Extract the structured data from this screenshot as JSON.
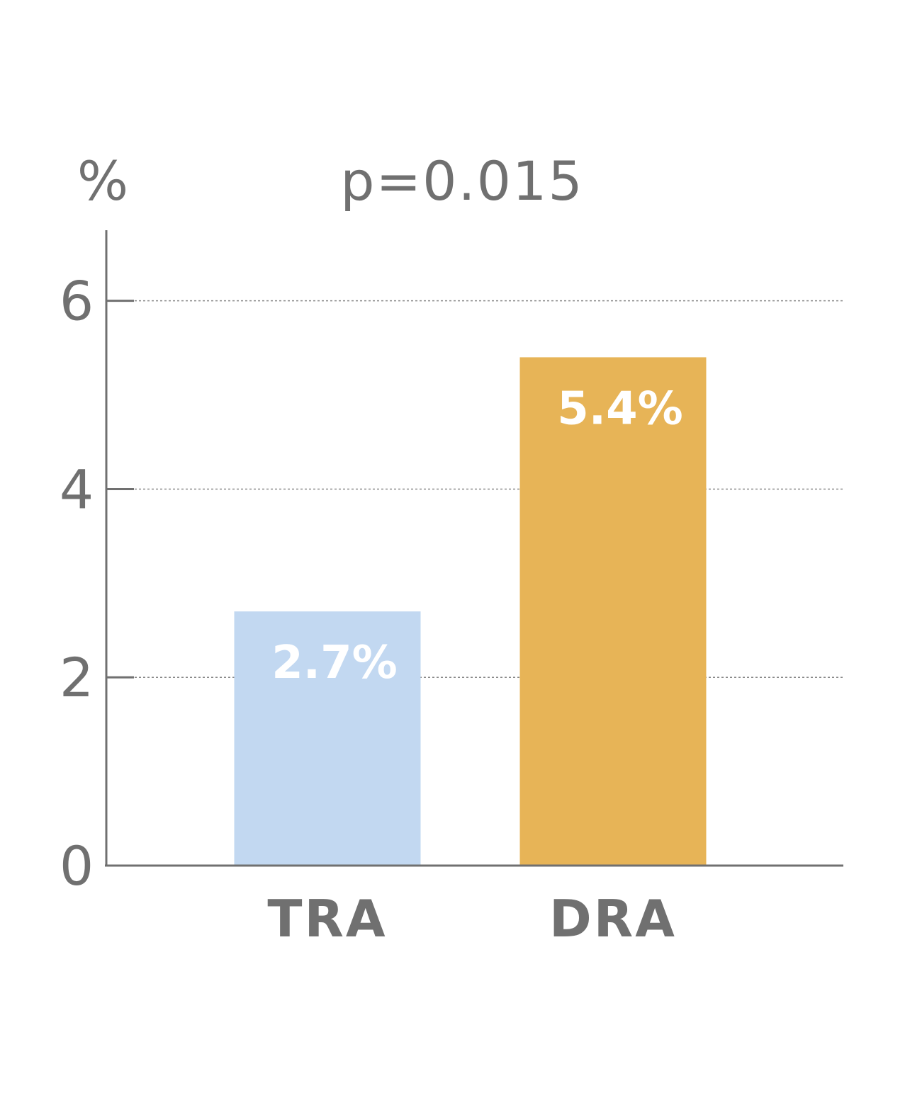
{
  "chart_data": {
    "type": "bar",
    "title": "",
    "xlabel": "",
    "ylabel": "%",
    "annotation": "p=0.015",
    "categories": [
      "TRA",
      "DRA"
    ],
    "values": [
      2.7,
      5.4
    ],
    "data_labels": [
      "2.7%",
      "5.4%"
    ],
    "colors": [
      "#c2d8f1",
      "#e7b457"
    ],
    "ylim": [
      0,
      6.75
    ],
    "yticks": [
      0,
      2,
      4,
      6
    ],
    "ytick_labels": [
      "0",
      "2",
      "4",
      "6"
    ],
    "grid": true,
    "legend": "none"
  }
}
